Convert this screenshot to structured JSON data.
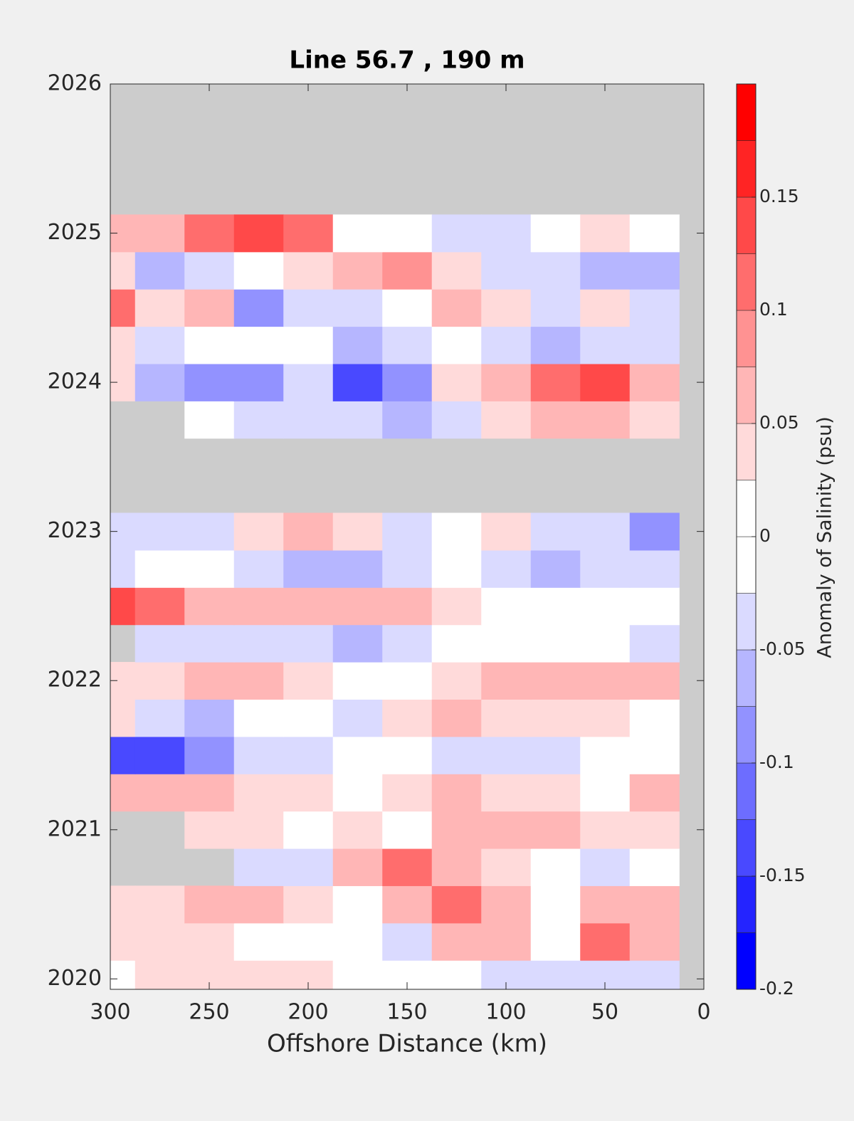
{
  "chart_data": {
    "type": "contour",
    "title": "Line 56.7 , 190 m",
    "x_label": "Offshore Distance (km)",
    "colorbar_label": "Anomaly of Salinity (psu)",
    "xlim": [
      300,
      0
    ],
    "xticks": [
      300,
      250,
      200,
      150,
      100,
      50,
      0
    ],
    "ylim": [
      2019.93,
      2026
    ],
    "yticks": [
      2020,
      2021,
      2022,
      2023,
      2024,
      2025,
      2026
    ],
    "zlim": [
      -0.2,
      0.2
    ],
    "zticks": [
      -0.2,
      -0.15,
      -0.1,
      -0.05,
      0,
      0.05,
      0.1,
      0.15
    ],
    "colors": [
      "#0000ff",
      "#2424ff",
      "#4949ff",
      "#6d6dff",
      "#9292ff",
      "#b6b6ff",
      "#dadaff",
      "#ffffff",
      "#ffffff",
      "#ffdada",
      "#ffb6b6",
      "#ff9292",
      "#ff6d6d",
      "#ff4949",
      "#ff2424",
      "#ff0000"
    ],
    "missing_color": "#cccccc",
    "x": [
      300,
      275,
      250,
      225,
      200,
      175,
      150,
      125,
      100,
      75,
      50,
      25
    ],
    "y": [
      2020,
      2020.25,
      2020.5,
      2020.75,
      2021,
      2021.25,
      2021.5,
      2021.75,
      2022,
      2022.25,
      2022.5,
      2022.75,
      2023,
      2023.25,
      2023.5,
      2023.75,
      2024,
      2024.25,
      2024.5,
      2024.75,
      2025
    ],
    "z": [
      [
        0,
        0.03,
        0.03,
        0.03,
        0.03,
        0,
        0,
        0,
        -0.03,
        -0.03,
        -0.03,
        -0.05
      ],
      [
        0.03,
        0.03,
        0.03,
        0,
        0,
        0,
        -0.03,
        0.05,
        0.07,
        0,
        0.1,
        0.05
      ],
      [
        0.03,
        0.03,
        0.05,
        0.05,
        0.03,
        0,
        0.05,
        0.1,
        0.07,
        0,
        0.05,
        0.05
      ],
      [
        null,
        null,
        null,
        -0.05,
        -0.05,
        0.05,
        0.1,
        0.07,
        0.03,
        0,
        -0.05,
        0
      ],
      [
        null,
        null,
        0.03,
        0.03,
        0,
        0.03,
        0,
        0.05,
        0.07,
        0.05,
        0.03,
        0.03
      ],
      [
        0.07,
        0.05,
        0.05,
        0.03,
        0.03,
        0,
        0.03,
        0.05,
        0.03,
        0.03,
        0,
        0.05
      ],
      [
        -0.15,
        -0.15,
        -0.1,
        -0.05,
        -0.03,
        0,
        0,
        -0.03,
        -0.03,
        -0.03,
        0,
        0
      ],
      [
        0.03,
        -0.05,
        -0.07,
        0,
        0,
        -0.03,
        0.03,
        0.05,
        0.03,
        0.03,
        0.03,
        0
      ],
      [
        0.03,
        0.03,
        0.05,
        0.05,
        0.03,
        0,
        0,
        0.03,
        0.05,
        0.07,
        0.05,
        0.05
      ],
      [
        null,
        -0.03,
        -0.03,
        -0.05,
        -0.03,
        -0.07,
        -0.03,
        0,
        0,
        0,
        0,
        -0.03
      ],
      [
        0.15,
        0.1,
        0.07,
        0.05,
        0.05,
        0.07,
        0.05,
        0.03,
        0,
        0,
        0,
        0
      ],
      [
        -0.05,
        0,
        0,
        -0.03,
        -0.07,
        -0.07,
        -0.05,
        0,
        -0.05,
        -0.07,
        -0.05,
        -0.05
      ],
      [
        -0.03,
        -0.03,
        -0.05,
        0.03,
        0.05,
        0.03,
        -0.03,
        0,
        0.03,
        -0.03,
        -0.05,
        -0.1
      ],
      [
        null,
        null,
        null,
        null,
        null,
        null,
        null,
        null,
        null,
        null,
        null,
        null
      ],
      [
        null,
        null,
        null,
        null,
        null,
        null,
        null,
        null,
        null,
        null,
        null,
        null
      ],
      [
        null,
        null,
        0,
        -0.03,
        -0.05,
        -0.05,
        -0.07,
        -0.03,
        0.03,
        0.05,
        0.05,
        0.03
      ],
      [
        0.03,
        -0.07,
        -0.1,
        -0.1,
        -0.05,
        -0.15,
        -0.1,
        0.03,
        0.07,
        0.1,
        0.15,
        0.05
      ],
      [
        0.03,
        -0.03,
        0,
        0,
        0,
        -0.07,
        -0.05,
        0,
        -0.03,
        -0.07,
        -0.05,
        -0.05
      ],
      [
        0.1,
        0.03,
        0.07,
        -0.1,
        -0.03,
        -0.03,
        0,
        0.07,
        0.03,
        -0.03,
        0.03,
        -0.03
      ],
      [
        0.03,
        -0.07,
        -0.05,
        0,
        0.03,
        0.05,
        0.08,
        0.03,
        -0.03,
        -0.05,
        -0.07,
        -0.07
      ],
      [
        0.05,
        0.05,
        0.1,
        0.15,
        0.1,
        0,
        0,
        -0.03,
        -0.03,
        0,
        0.03,
        0
      ]
    ]
  }
}
